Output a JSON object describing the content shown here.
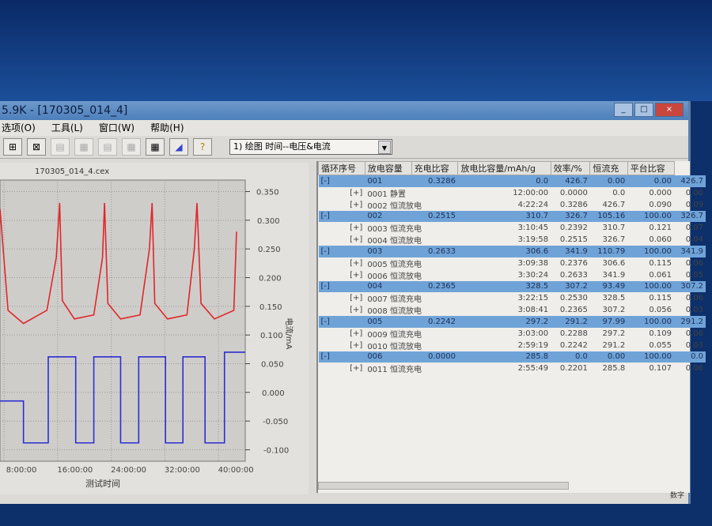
{
  "window": {
    "title": "5.9K - [170305_014_4]",
    "controls": [
      "_",
      "□",
      "×"
    ]
  },
  "menu": [
    "选项(O)",
    "工具(L)",
    "窗口(W)",
    "帮助(H)"
  ],
  "toolbar": {
    "buttons": [
      "zoom-in",
      "zoom-fit",
      "layout-1",
      "layout-2",
      "layout-3",
      "layout-4",
      "grid",
      "chart",
      "help"
    ],
    "combo_value": "1) 绘图  时间--电压&电流"
  },
  "chart_panel": {
    "file_name": "170305_014_4.cex"
  },
  "chart_data": {
    "type": "line",
    "xlabel": "测试时间",
    "ylabel_right": "电流/mA",
    "x_unit": "hours (hh:mm)",
    "xticks": [
      "8:00:00",
      "16:00:00",
      "24:00:00",
      "32:00:00",
      "40:00:00"
    ],
    "xlim": [
      7.4,
      44
    ],
    "yticks_right": [
      "0.350",
      "0.300",
      "0.250",
      "0.200",
      "0.150",
      "0.100",
      "0.050",
      "0.000",
      "-0.050",
      "-0.100"
    ],
    "ylim_right": [
      -0.12,
      0.37
    ],
    "grid": true,
    "series": [
      {
        "color": "#e0262a",
        "x": [
          7.4,
          8.6,
          10.9,
          14.4,
          15.8,
          16.3,
          16.7,
          18.5,
          21.4,
          22.7,
          23.0,
          23.5,
          25.4,
          28.3,
          29.7,
          30.1,
          30.5,
          32.4,
          35.3,
          36.4,
          36.8,
          37.4,
          39.4,
          42.3,
          42.7
        ],
        "y": [
          0.32,
          0.143,
          0.12,
          0.143,
          0.235,
          0.33,
          0.16,
          0.128,
          0.135,
          0.235,
          0.33,
          0.155,
          0.128,
          0.135,
          0.25,
          0.33,
          0.155,
          0.128,
          0.135,
          0.25,
          0.33,
          0.155,
          0.128,
          0.143,
          0.28
        ]
      },
      {
        "color": "#2b2fd0",
        "x": [
          7.4,
          10.9,
          10.9,
          14.6,
          14.6,
          18.7,
          18.7,
          21.4,
          21.4,
          25.4,
          25.4,
          28.1,
          28.1,
          32.1,
          32.1,
          34.7,
          34.7,
          38.0,
          38.0,
          40.9,
          40.9,
          44
        ],
        "y": [
          -0.015,
          -0.015,
          -0.088,
          -0.088,
          0.062,
          0.062,
          -0.088,
          -0.088,
          0.062,
          0.062,
          -0.088,
          -0.088,
          0.062,
          0.062,
          -0.088,
          -0.088,
          0.062,
          0.062,
          -0.088,
          -0.088,
          0.07,
          0.07
        ]
      }
    ]
  },
  "table": {
    "headers": [
      "循环序号",
      "放电容量",
      "充电比容",
      "放电比容量/mAh/g",
      "效率/%",
      "恒流充",
      "平台比容"
    ],
    "rows": [
      {
        "type": "cycle",
        "c": [
          "[-]",
          "001",
          "0.3286",
          "0.0",
          "426.7",
          "0.00",
          "0.00",
          "426.7"
        ]
      },
      {
        "type": "step",
        "c": [
          "[+]",
          "0001 静置",
          "12:00:00",
          "0.0000",
          "0.0",
          "0.000",
          "0.00"
        ]
      },
      {
        "type": "step",
        "c": [
          "[+]",
          "0002 恒流放电",
          "4:22:24",
          "0.3286",
          "426.7",
          "0.090",
          "0.09"
        ]
      },
      {
        "type": "cycle",
        "c": [
          "[-]",
          "002",
          "0.2515",
          "310.7",
          "326.7",
          "105.16",
          "100.00",
          "326.7"
        ]
      },
      {
        "type": "step",
        "c": [
          "[+]",
          "0003 恒流充电",
          "3:10:45",
          "0.2392",
          "310.7",
          "0.121",
          "0.07"
        ]
      },
      {
        "type": "step",
        "c": [
          "[+]",
          "0004 恒流放电",
          "3:19:58",
          "0.2515",
          "326.7",
          "0.060",
          "0.04"
        ]
      },
      {
        "type": "cycle",
        "c": [
          "[-]",
          "003",
          "0.2633",
          "306.6",
          "341.9",
          "110.79",
          "100.00",
          "341.9"
        ]
      },
      {
        "type": "step",
        "c": [
          "[+]",
          "0005 恒流充电",
          "3:09:38",
          "0.2376",
          "306.6",
          "0.115",
          "0.06"
        ]
      },
      {
        "type": "step",
        "c": [
          "[+]",
          "0006 恒流放电",
          "3:30:24",
          "0.2633",
          "341.9",
          "0.061",
          "0.05"
        ]
      },
      {
        "type": "cycle",
        "c": [
          "[-]",
          "004",
          "0.2365",
          "328.5",
          "307.2",
          "93.49",
          "100.00",
          "307.2"
        ]
      },
      {
        "type": "step",
        "c": [
          "[+]",
          "0007 恒流充电",
          "3:22:15",
          "0.2530",
          "328.5",
          "0.115",
          "0.06"
        ]
      },
      {
        "type": "step",
        "c": [
          "[+]",
          "0008 恒流放电",
          "3:08:41",
          "0.2365",
          "307.2",
          "0.056",
          "0.03"
        ]
      },
      {
        "type": "cycle",
        "c": [
          "[-]",
          "005",
          "0.2242",
          "297.2",
          "291.2",
          "97.99",
          "100.00",
          "291.2"
        ]
      },
      {
        "type": "step",
        "c": [
          "[+]",
          "0009 恒流充电",
          "3:03:00",
          "0.2288",
          "297.2",
          "0.109",
          "0.06"
        ]
      },
      {
        "type": "step",
        "c": [
          "[+]",
          "0010 恒流放电",
          "2:59:19",
          "0.2242",
          "291.2",
          "0.055",
          "0.03"
        ]
      },
      {
        "type": "cycle",
        "c": [
          "[-]",
          "006",
          "0.0000",
          "285.8",
          "0.0",
          "0.00",
          "100.00",
          "0.0"
        ]
      },
      {
        "type": "step",
        "c": [
          "[+]",
          "0011 恒流充电",
          "2:55:49",
          "0.2201",
          "285.8",
          "0.107",
          "0.06"
        ]
      }
    ]
  },
  "status": {
    "text": "数字"
  }
}
